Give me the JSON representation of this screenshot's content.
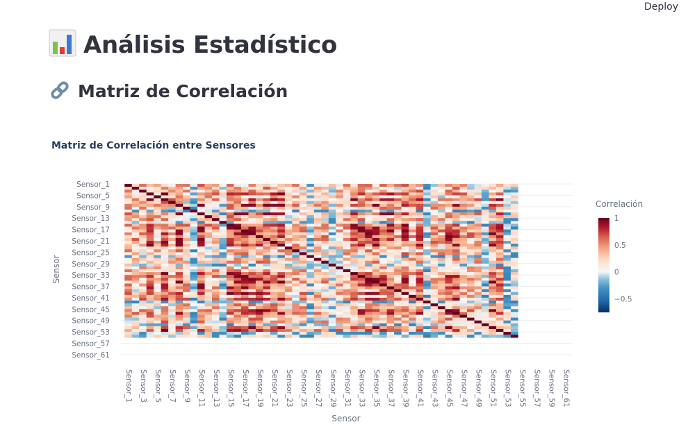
{
  "header": {
    "deploy_label": "Deploy"
  },
  "page": {
    "title": "Análisis Estadístico",
    "title_icon": "bar-chart-icon",
    "subtitle": "Matriz de Correlación",
    "subtitle_icon": "link-icon"
  },
  "chart_data": {
    "type": "heatmap",
    "title": "Matriz de Correlación entre Sensores",
    "xlabel": "Sensor",
    "ylabel": "Sensor",
    "n_sensors": 62,
    "n_filled": 54,
    "x_tick_labels": [
      "Sensor_1",
      "Sensor_3",
      "Sensor_5",
      "Sensor_7",
      "Sensor_9",
      "Sensor_11",
      "Sensor_13",
      "Sensor_15",
      "Sensor_17",
      "Sensor_19",
      "Sensor_21",
      "Sensor_23",
      "Sensor_25",
      "Sensor_27",
      "Sensor_29",
      "Sensor_31",
      "Sensor_33",
      "Sensor_35",
      "Sensor_37",
      "Sensor_39",
      "Sensor_41",
      "Sensor_43",
      "Sensor_45",
      "Sensor_47",
      "Sensor_49",
      "Sensor_51",
      "Sensor_53",
      "Sensor_55",
      "Sensor_57",
      "Sensor_59",
      "Sensor_61"
    ],
    "y_tick_labels": [
      "Sensor_1",
      "Sensor_5",
      "Sensor_9",
      "Sensor_13",
      "Sensor_17",
      "Sensor_21",
      "Sensor_25",
      "Sensor_29",
      "Sensor_33",
      "Sensor_37",
      "Sensor_41",
      "Sensor_45",
      "Sensor_49",
      "Sensor_53",
      "Sensor_57",
      "Sensor_61"
    ],
    "colorscale": "RdBu (reversed)",
    "zmin": -0.75,
    "zmax": 1,
    "colorbar": {
      "title": "Correlación",
      "ticks": [
        "1",
        "0.5",
        "0",
        "−0.5"
      ],
      "tick_values": [
        1,
        0.5,
        0,
        -0.5
      ]
    },
    "diagonal_value": 1,
    "strong_cluster_indices": [
      3,
      5,
      7,
      10,
      14,
      15,
      16,
      17,
      18,
      19,
      20,
      21,
      31,
      32,
      33,
      34,
      35,
      36,
      38,
      40,
      44,
      45,
      50,
      51
    ],
    "weak_indices": [
      9,
      13,
      25,
      28,
      41,
      49,
      52,
      53
    ]
  }
}
